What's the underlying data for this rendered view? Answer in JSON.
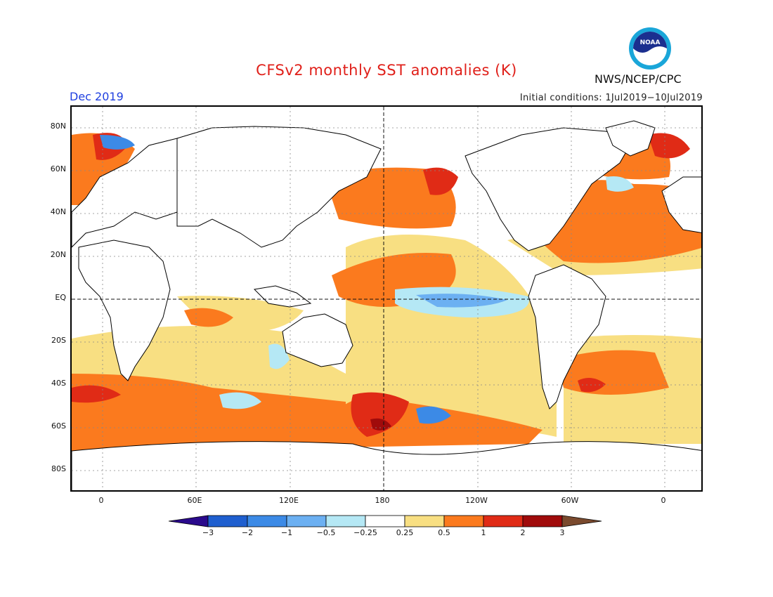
{
  "title": "CFSv2 monthly SST anomalies (K)",
  "valid_month": "Dec 2019",
  "initial_conditions": "Initial conditions: 1Jul2019−10Jul2019",
  "agency": "NWS/NCEP/CPC",
  "logo_text": "NOAA",
  "lat_labels": [
    "80N",
    "60N",
    "40N",
    "20N",
    "EQ",
    "20S",
    "40S",
    "60S",
    "80S"
  ],
  "lon_labels": [
    "0",
    "60E",
    "120E",
    "180",
    "120W",
    "60W",
    "0"
  ],
  "colorbar": {
    "labels": [
      "−3",
      "−2",
      "−1",
      "−0.5",
      "−0.25",
      "0.25",
      "0.5",
      "1",
      "2",
      "3"
    ],
    "colors": [
      "#2a0a8c",
      "#1f5fcf",
      "#3c8ae6",
      "#6cb0f2",
      "#b5e8f5",
      "#ffffff",
      "#f8df82",
      "#fb7a1e",
      "#e02b16",
      "#a00b0b",
      "#7a4a2e"
    ]
  },
  "colors": {
    "title": "#e0201a",
    "date": "#2040e0",
    "warm_light": "#f8df82",
    "warm_mid": "#fb7a1e",
    "warm_strong": "#e02b16",
    "warm_extreme": "#a00b0b",
    "cool_light": "#b5e8f5",
    "cool_mid": "#6cb0f2",
    "cool_strong": "#3c8ae6"
  }
}
